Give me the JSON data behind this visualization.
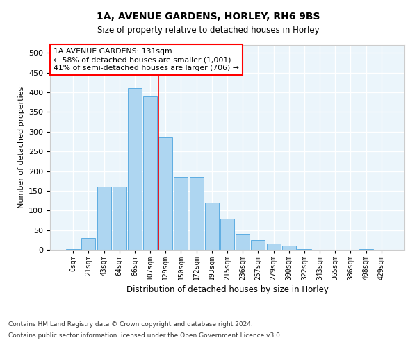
{
  "title": "1A, AVENUE GARDENS, HORLEY, RH6 9BS",
  "subtitle": "Size of property relative to detached houses in Horley",
  "xlabel": "Distribution of detached houses by size in Horley",
  "ylabel": "Number of detached properties",
  "footnote1": "Contains HM Land Registry data © Crown copyright and database right 2024.",
  "footnote2": "Contains public sector information licensed under the Open Government Licence v3.0.",
  "bar_labels": [
    "0sqm",
    "21sqm",
    "43sqm",
    "64sqm",
    "86sqm",
    "107sqm",
    "129sqm",
    "150sqm",
    "172sqm",
    "193sqm",
    "215sqm",
    "236sqm",
    "257sqm",
    "279sqm",
    "300sqm",
    "322sqm",
    "343sqm",
    "365sqm",
    "386sqm",
    "408sqm",
    "429sqm"
  ],
  "bar_values": [
    2,
    30,
    160,
    160,
    410,
    390,
    285,
    185,
    185,
    120,
    80,
    40,
    25,
    15,
    10,
    2,
    0,
    0,
    0,
    2,
    0
  ],
  "bar_color": "#AED6F1",
  "bar_edge_color": "#5DADE2",
  "background_color": "#EBF5FB",
  "grid_color": "#FFFFFF",
  "vline_x": 5.55,
  "vline_color": "red",
  "annotation_text": "1A AVENUE GARDENS: 131sqm\n← 58% of detached houses are smaller (1,001)\n41% of semi-detached houses are larger (706) →",
  "annotation_box_color": "white",
  "annotation_box_edge": "red",
  "ylim": [
    0,
    520
  ],
  "yticks": [
    0,
    50,
    100,
    150,
    200,
    250,
    300,
    350,
    400,
    450,
    500
  ]
}
